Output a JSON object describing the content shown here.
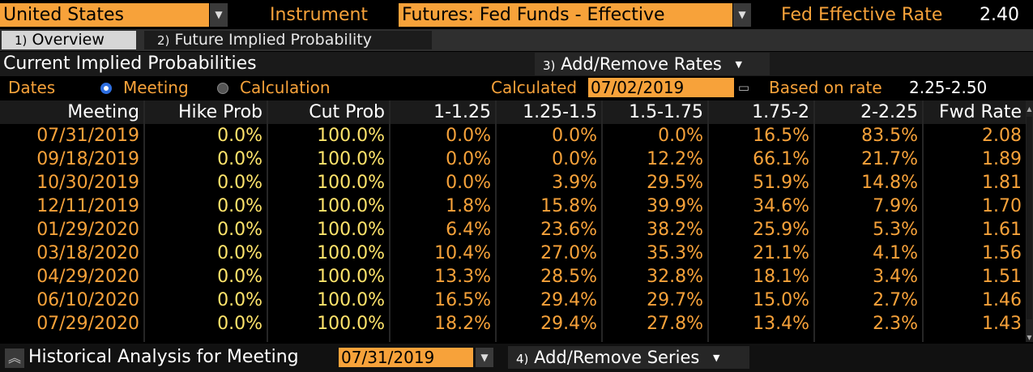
{
  "header": {
    "country": "United States",
    "instrument_label": "Instrument",
    "instrument": "Futures: Fed Funds - Effective",
    "rate_label": "Fed Effective Rate",
    "rate_value": "2.40"
  },
  "tabs": [
    {
      "num": "1)",
      "label": "Overview"
    },
    {
      "num": "2)",
      "label": "Future Implied Probability"
    }
  ],
  "section": {
    "title": "Current Implied Probabilities",
    "add_remove_num": "3)",
    "add_remove_label": "Add/Remove Rates"
  },
  "controls": {
    "dates_label": "Dates",
    "meeting_label": "Meeting",
    "calculation_label": "Calculation",
    "calculated_label": "Calculated",
    "calculated_date": "07/02/2019",
    "based_label": "Based on rate",
    "based_value": "2.25-2.50"
  },
  "table": {
    "columns": [
      "Meeting",
      "Hike Prob",
      "Cut Prob",
      "1-1.25",
      "1.25-1.5",
      "1.5-1.75",
      "1.75-2",
      "2-2.25",
      "Fwd Rate"
    ],
    "rows": [
      [
        "07/31/2019",
        "0.0%",
        "100.0%",
        "0.0%",
        "0.0%",
        "0.0%",
        "16.5%",
        "83.5%",
        "2.08"
      ],
      [
        "09/18/2019",
        "0.0%",
        "100.0%",
        "0.0%",
        "0.0%",
        "12.2%",
        "66.1%",
        "21.7%",
        "1.89"
      ],
      [
        "10/30/2019",
        "0.0%",
        "100.0%",
        "0.0%",
        "3.9%",
        "29.5%",
        "51.9%",
        "14.8%",
        "1.81"
      ],
      [
        "12/11/2019",
        "0.0%",
        "100.0%",
        "1.8%",
        "15.8%",
        "39.9%",
        "34.6%",
        "7.9%",
        "1.70"
      ],
      [
        "01/29/2020",
        "0.0%",
        "100.0%",
        "6.4%",
        "23.6%",
        "38.2%",
        "25.9%",
        "5.3%",
        "1.61"
      ],
      [
        "03/18/2020",
        "0.0%",
        "100.0%",
        "10.4%",
        "27.0%",
        "35.3%",
        "21.1%",
        "4.1%",
        "1.56"
      ],
      [
        "04/29/2020",
        "0.0%",
        "100.0%",
        "13.3%",
        "28.5%",
        "32.8%",
        "18.1%",
        "3.4%",
        "1.51"
      ],
      [
        "06/10/2020",
        "0.0%",
        "100.0%",
        "16.5%",
        "29.4%",
        "29.7%",
        "15.0%",
        "2.7%",
        "1.46"
      ],
      [
        "07/29/2020",
        "0.0%",
        "100.0%",
        "18.2%",
        "29.4%",
        "27.8%",
        "13.4%",
        "2.3%",
        "1.43"
      ]
    ]
  },
  "bottom": {
    "title": "Historical Analysis for Meeting",
    "meeting_date": "07/31/2019",
    "add_remove_num": "4)",
    "add_remove_label": "Add/Remove Series"
  },
  "colors": {
    "accent": "#f7a23a",
    "prob_text": "#ffe46b",
    "background": "#000000"
  },
  "icons": {
    "dropdown": "caret-down-icon",
    "calendar": "calendar-icon",
    "collapse": "double-chevron-up-icon"
  }
}
